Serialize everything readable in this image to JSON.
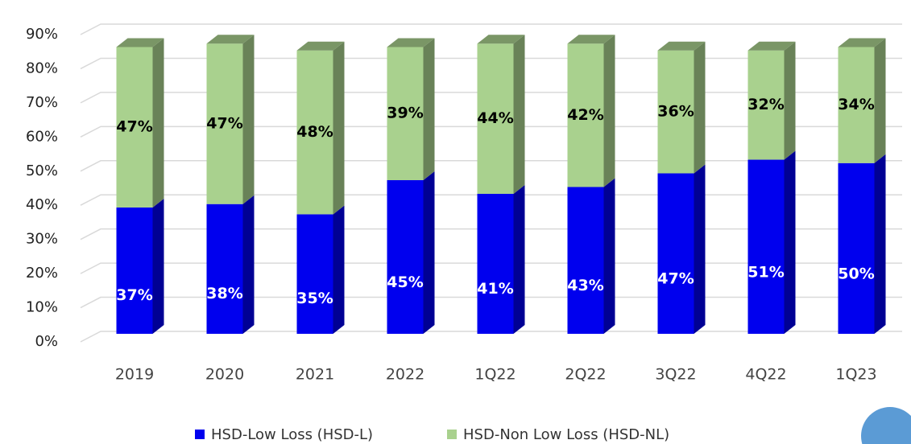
{
  "chart_data": {
    "type": "bar",
    "stacked": true,
    "categories": [
      "2019",
      "2020",
      "2021",
      "2022",
      "1Q22",
      "2Q22",
      "3Q22",
      "4Q22",
      "1Q23"
    ],
    "series": [
      {
        "name": "HSD-Low Loss (HSD-L)",
        "color": "#0000ee",
        "label_color": "#ffffff",
        "values": [
          37,
          38,
          35,
          45,
          41,
          43,
          47,
          51,
          50
        ],
        "value_labels": [
          "37%",
          "38%",
          "35%",
          "45%",
          "41%",
          "43%",
          "47%",
          "51%",
          "50%"
        ]
      },
      {
        "name": "HSD-Non Low Loss (HSD-NL)",
        "color": "#a9d18e",
        "label_color": "#000000",
        "values": [
          47,
          47,
          48,
          39,
          44,
          42,
          36,
          32,
          34
        ],
        "value_labels": [
          "47%",
          "47%",
          "48%",
          "39%",
          "44%",
          "42%",
          "36%",
          "32%",
          "34%"
        ]
      }
    ],
    "ylim": [
      0,
      90
    ],
    "yticks": [
      {
        "value": 0,
        "label": "0%"
      },
      {
        "value": 10,
        "label": "10%"
      },
      {
        "value": 20,
        "label": "20%"
      },
      {
        "value": 30,
        "label": "30%"
      },
      {
        "value": 40,
        "label": "40%"
      },
      {
        "value": 50,
        "label": "50%"
      },
      {
        "value": 60,
        "label": "60%"
      },
      {
        "value": 70,
        "label": "70%"
      },
      {
        "value": 80,
        "label": "80%"
      },
      {
        "value": 90,
        "label": "90%"
      }
    ],
    "grid": true
  }
}
